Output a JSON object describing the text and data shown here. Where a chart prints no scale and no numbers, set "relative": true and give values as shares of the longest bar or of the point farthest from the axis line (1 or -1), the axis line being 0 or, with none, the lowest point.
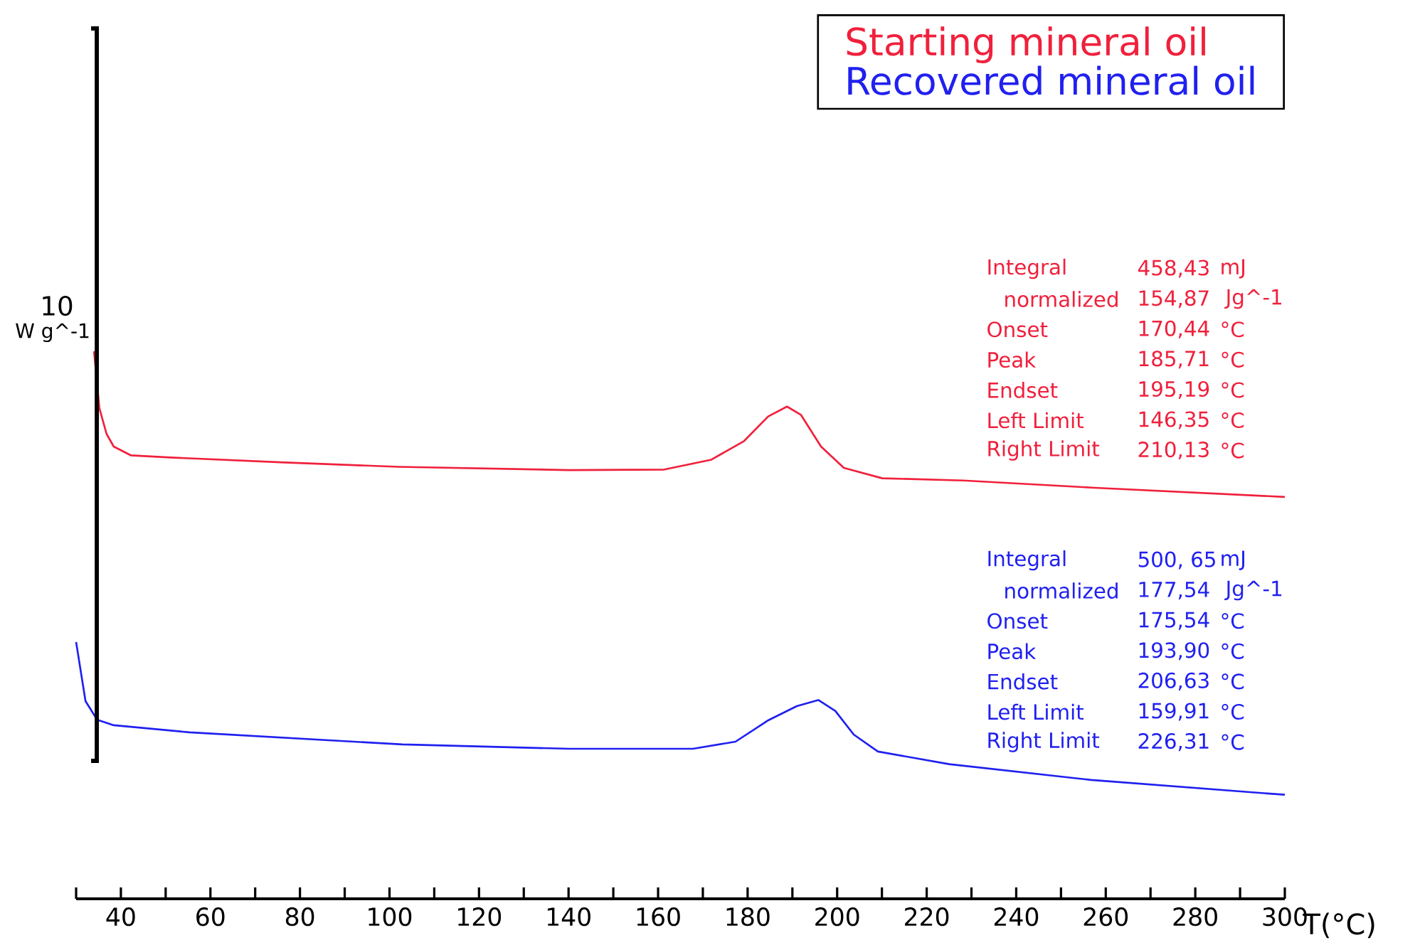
{
  "chart_data": {
    "type": "line",
    "relative": true,
    "xlabel": "T(°C)",
    "legend": "top right",
    "xlim": [
      30,
      300
    ],
    "xticks": [
      {
        "value": 30,
        "label": null
      },
      40,
      {
        "value": 50,
        "label": null
      },
      60,
      {
        "value": 70,
        "label": null
      },
      80,
      {
        "value": 90,
        "label": null
      },
      100,
      {
        "value": 110,
        "label": null
      },
      120,
      {
        "value": 130,
        "label": null
      },
      140,
      {
        "value": 150,
        "label": null
      },
      160,
      {
        "value": 170,
        "label": null
      },
      180,
      {
        "value": 190,
        "label": null
      },
      200,
      {
        "value": 210,
        "label": null
      },
      220,
      {
        "value": 230,
        "label": null
      },
      240,
      {
        "value": 250,
        "label": null
      },
      260,
      {
        "value": 270,
        "label": null
      },
      280,
      {
        "value": 290,
        "label": null
      },
      300
    ],
    "series": [
      {
        "name": "Starting mineral oil",
        "color": "#f0203c",
        "x": [
          34,
          35.2,
          36.8,
          38.4,
          42.2,
          51.1,
          76.6,
          102,
          140.1,
          161.4,
          171.9,
          179.2,
          184.6,
          188.8,
          191.9,
          196.4,
          201.5,
          210.1,
          228.2,
          256.8,
          300
        ],
        "values": [
          1.0,
          0.896,
          0.849,
          0.826,
          0.81,
          0.806,
          0.797,
          0.789,
          0.783,
          0.784,
          0.802,
          0.836,
          0.881,
          0.899,
          0.884,
          0.826,
          0.787,
          0.768,
          0.764,
          0.751,
          0.734
        ]
      },
      {
        "name": "Recovered mineral oil",
        "color": "#2020f0",
        "x": [
          30,
          32.1,
          34.7,
          38.4,
          55.3,
          102.9,
          140.1,
          167.8,
          177.3,
          184.6,
          191,
          195.8,
          199.6,
          203.7,
          209.1,
          225,
          256.8,
          300
        ],
        "values": [
          0.469,
          0.361,
          0.327,
          0.317,
          0.304,
          0.282,
          0.274,
          0.274,
          0.287,
          0.326,
          0.352,
          0.363,
          0.343,
          0.3,
          0.269,
          0.246,
          0.217,
          0.19
        ]
      }
    ],
    "annotations": [
      "10",
      "W g^-1",
      "Integral",
      "458,43",
      "mJ",
      "normalized",
      "154,87",
      "Jg^-1",
      "Onset",
      "170,44",
      "°C",
      "Peak",
      "185,71",
      "°C",
      "Endset",
      "195,19",
      "°C",
      "Left Limit",
      "146,35",
      "°C",
      "Right Limit",
      "210,13",
      "°C",
      "Integral",
      "500, 65",
      "mJ",
      "normalized",
      "177,54",
      "Jg^-1",
      "Onset",
      "175,54",
      "°C",
      "Peak",
      "193,90",
      "°C",
      "Endset",
      "206,63",
      "°C",
      "Left Limit",
      "159,91",
      "°C",
      "Right Limit",
      "226,31",
      "°C"
    ]
  }
}
